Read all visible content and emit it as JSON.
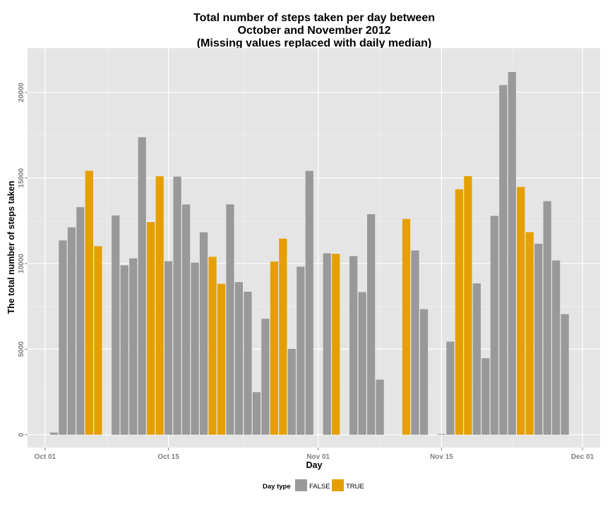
{
  "chart_data": {
    "type": "bar",
    "title_lines": [
      "Total number of steps taken per day between",
      "October and November 2012",
      "(Missing values replaced with daily median)"
    ],
    "xlabel": "Day",
    "ylabel": "The total number of steps taken",
    "ylim": [
      -750,
      22600
    ],
    "y_ticks": [
      0,
      5000,
      10000,
      15000,
      20000
    ],
    "y_tick_labels": [
      "0",
      "5000",
      "10000",
      "15000",
      "20000"
    ],
    "x_range": [
      "2012-09-29",
      "2012-12-03"
    ],
    "x_ticks": [
      {
        "date": "2012-10-01",
        "label": "Oct 01"
      },
      {
        "date": "2012-10-15",
        "label": "Oct 15"
      },
      {
        "date": "2012-11-01",
        "label": "Nov 01"
      },
      {
        "date": "2012-11-15",
        "label": "Nov 15"
      },
      {
        "date": "2012-12-01",
        "label": "Dec 01"
      }
    ],
    "grid": true,
    "legend": {
      "title": "Day type",
      "position": "bottom",
      "entries": [
        {
          "label": "FALSE",
          "color": "#999999"
        },
        {
          "label": "TRUE",
          "color": "#E69F00"
        }
      ]
    },
    "colors": {
      "FALSE": "#999999",
      "TRUE": "#E69F00",
      "panel": "#E5E5E5",
      "grid": "#FFFFFF"
    },
    "data": [
      {
        "date": "2012-10-01",
        "steps": 0,
        "day_type": "FALSE"
      },
      {
        "date": "2012-10-02",
        "steps": 126,
        "day_type": "FALSE"
      },
      {
        "date": "2012-10-03",
        "steps": 11352,
        "day_type": "FALSE"
      },
      {
        "date": "2012-10-04",
        "steps": 12116,
        "day_type": "FALSE"
      },
      {
        "date": "2012-10-05",
        "steps": 13294,
        "day_type": "FALSE"
      },
      {
        "date": "2012-10-06",
        "steps": 15420,
        "day_type": "TRUE"
      },
      {
        "date": "2012-10-07",
        "steps": 11015,
        "day_type": "TRUE"
      },
      {
        "date": "2012-10-08",
        "steps": 0,
        "day_type": "FALSE"
      },
      {
        "date": "2012-10-09",
        "steps": 12811,
        "day_type": "FALSE"
      },
      {
        "date": "2012-10-10",
        "steps": 9900,
        "day_type": "FALSE"
      },
      {
        "date": "2012-10-11",
        "steps": 10304,
        "day_type": "FALSE"
      },
      {
        "date": "2012-10-12",
        "steps": 17382,
        "day_type": "FALSE"
      },
      {
        "date": "2012-10-13",
        "steps": 12426,
        "day_type": "TRUE"
      },
      {
        "date": "2012-10-14",
        "steps": 15098,
        "day_type": "TRUE"
      },
      {
        "date": "2012-10-15",
        "steps": 10139,
        "day_type": "FALSE"
      },
      {
        "date": "2012-10-16",
        "steps": 15084,
        "day_type": "FALSE"
      },
      {
        "date": "2012-10-17",
        "steps": 13452,
        "day_type": "FALSE"
      },
      {
        "date": "2012-10-18",
        "steps": 10056,
        "day_type": "FALSE"
      },
      {
        "date": "2012-10-19",
        "steps": 11829,
        "day_type": "FALSE"
      },
      {
        "date": "2012-10-20",
        "steps": 10395,
        "day_type": "TRUE"
      },
      {
        "date": "2012-10-21",
        "steps": 8821,
        "day_type": "TRUE"
      },
      {
        "date": "2012-10-22",
        "steps": 13460,
        "day_type": "FALSE"
      },
      {
        "date": "2012-10-23",
        "steps": 8918,
        "day_type": "FALSE"
      },
      {
        "date": "2012-10-24",
        "steps": 8355,
        "day_type": "FALSE"
      },
      {
        "date": "2012-10-25",
        "steps": 2492,
        "day_type": "FALSE"
      },
      {
        "date": "2012-10-26",
        "steps": 6778,
        "day_type": "FALSE"
      },
      {
        "date": "2012-10-27",
        "steps": 10119,
        "day_type": "TRUE"
      },
      {
        "date": "2012-10-28",
        "steps": 11458,
        "day_type": "TRUE"
      },
      {
        "date": "2012-10-29",
        "steps": 5018,
        "day_type": "FALSE"
      },
      {
        "date": "2012-10-30",
        "steps": 9819,
        "day_type": "FALSE"
      },
      {
        "date": "2012-10-31",
        "steps": 15414,
        "day_type": "FALSE"
      },
      {
        "date": "2012-11-01",
        "steps": 0,
        "day_type": "FALSE"
      },
      {
        "date": "2012-11-02",
        "steps": 10600,
        "day_type": "FALSE"
      },
      {
        "date": "2012-11-03",
        "steps": 10571,
        "day_type": "TRUE"
      },
      {
        "date": "2012-11-04",
        "steps": 0,
        "day_type": "TRUE"
      },
      {
        "date": "2012-11-05",
        "steps": 10439,
        "day_type": "FALSE"
      },
      {
        "date": "2012-11-06",
        "steps": 8334,
        "day_type": "FALSE"
      },
      {
        "date": "2012-11-07",
        "steps": 12883,
        "day_type": "FALSE"
      },
      {
        "date": "2012-11-08",
        "steps": 3219,
        "day_type": "FALSE"
      },
      {
        "date": "2012-11-09",
        "steps": 0,
        "day_type": "FALSE"
      },
      {
        "date": "2012-11-10",
        "steps": 0,
        "day_type": "TRUE"
      },
      {
        "date": "2012-11-11",
        "steps": 12608,
        "day_type": "TRUE"
      },
      {
        "date": "2012-11-12",
        "steps": 10765,
        "day_type": "FALSE"
      },
      {
        "date": "2012-11-13",
        "steps": 7336,
        "day_type": "FALSE"
      },
      {
        "date": "2012-11-14",
        "steps": 0,
        "day_type": "FALSE"
      },
      {
        "date": "2012-11-15",
        "steps": 41,
        "day_type": "FALSE"
      },
      {
        "date": "2012-11-16",
        "steps": 5441,
        "day_type": "FALSE"
      },
      {
        "date": "2012-11-17",
        "steps": 14339,
        "day_type": "TRUE"
      },
      {
        "date": "2012-11-18",
        "steps": 15110,
        "day_type": "TRUE"
      },
      {
        "date": "2012-11-19",
        "steps": 8841,
        "day_type": "FALSE"
      },
      {
        "date": "2012-11-20",
        "steps": 4472,
        "day_type": "FALSE"
      },
      {
        "date": "2012-11-21",
        "steps": 12787,
        "day_type": "FALSE"
      },
      {
        "date": "2012-11-22",
        "steps": 20427,
        "day_type": "FALSE"
      },
      {
        "date": "2012-11-23",
        "steps": 21194,
        "day_type": "FALSE"
      },
      {
        "date": "2012-11-24",
        "steps": 14478,
        "day_type": "TRUE"
      },
      {
        "date": "2012-11-25",
        "steps": 11834,
        "day_type": "TRUE"
      },
      {
        "date": "2012-11-26",
        "steps": 11162,
        "day_type": "FALSE"
      },
      {
        "date": "2012-11-27",
        "steps": 13646,
        "day_type": "FALSE"
      },
      {
        "date": "2012-11-28",
        "steps": 10183,
        "day_type": "FALSE"
      },
      {
        "date": "2012-11-29",
        "steps": 7047,
        "day_type": "FALSE"
      },
      {
        "date": "2012-11-30",
        "steps": 0,
        "day_type": "FALSE"
      }
    ]
  }
}
